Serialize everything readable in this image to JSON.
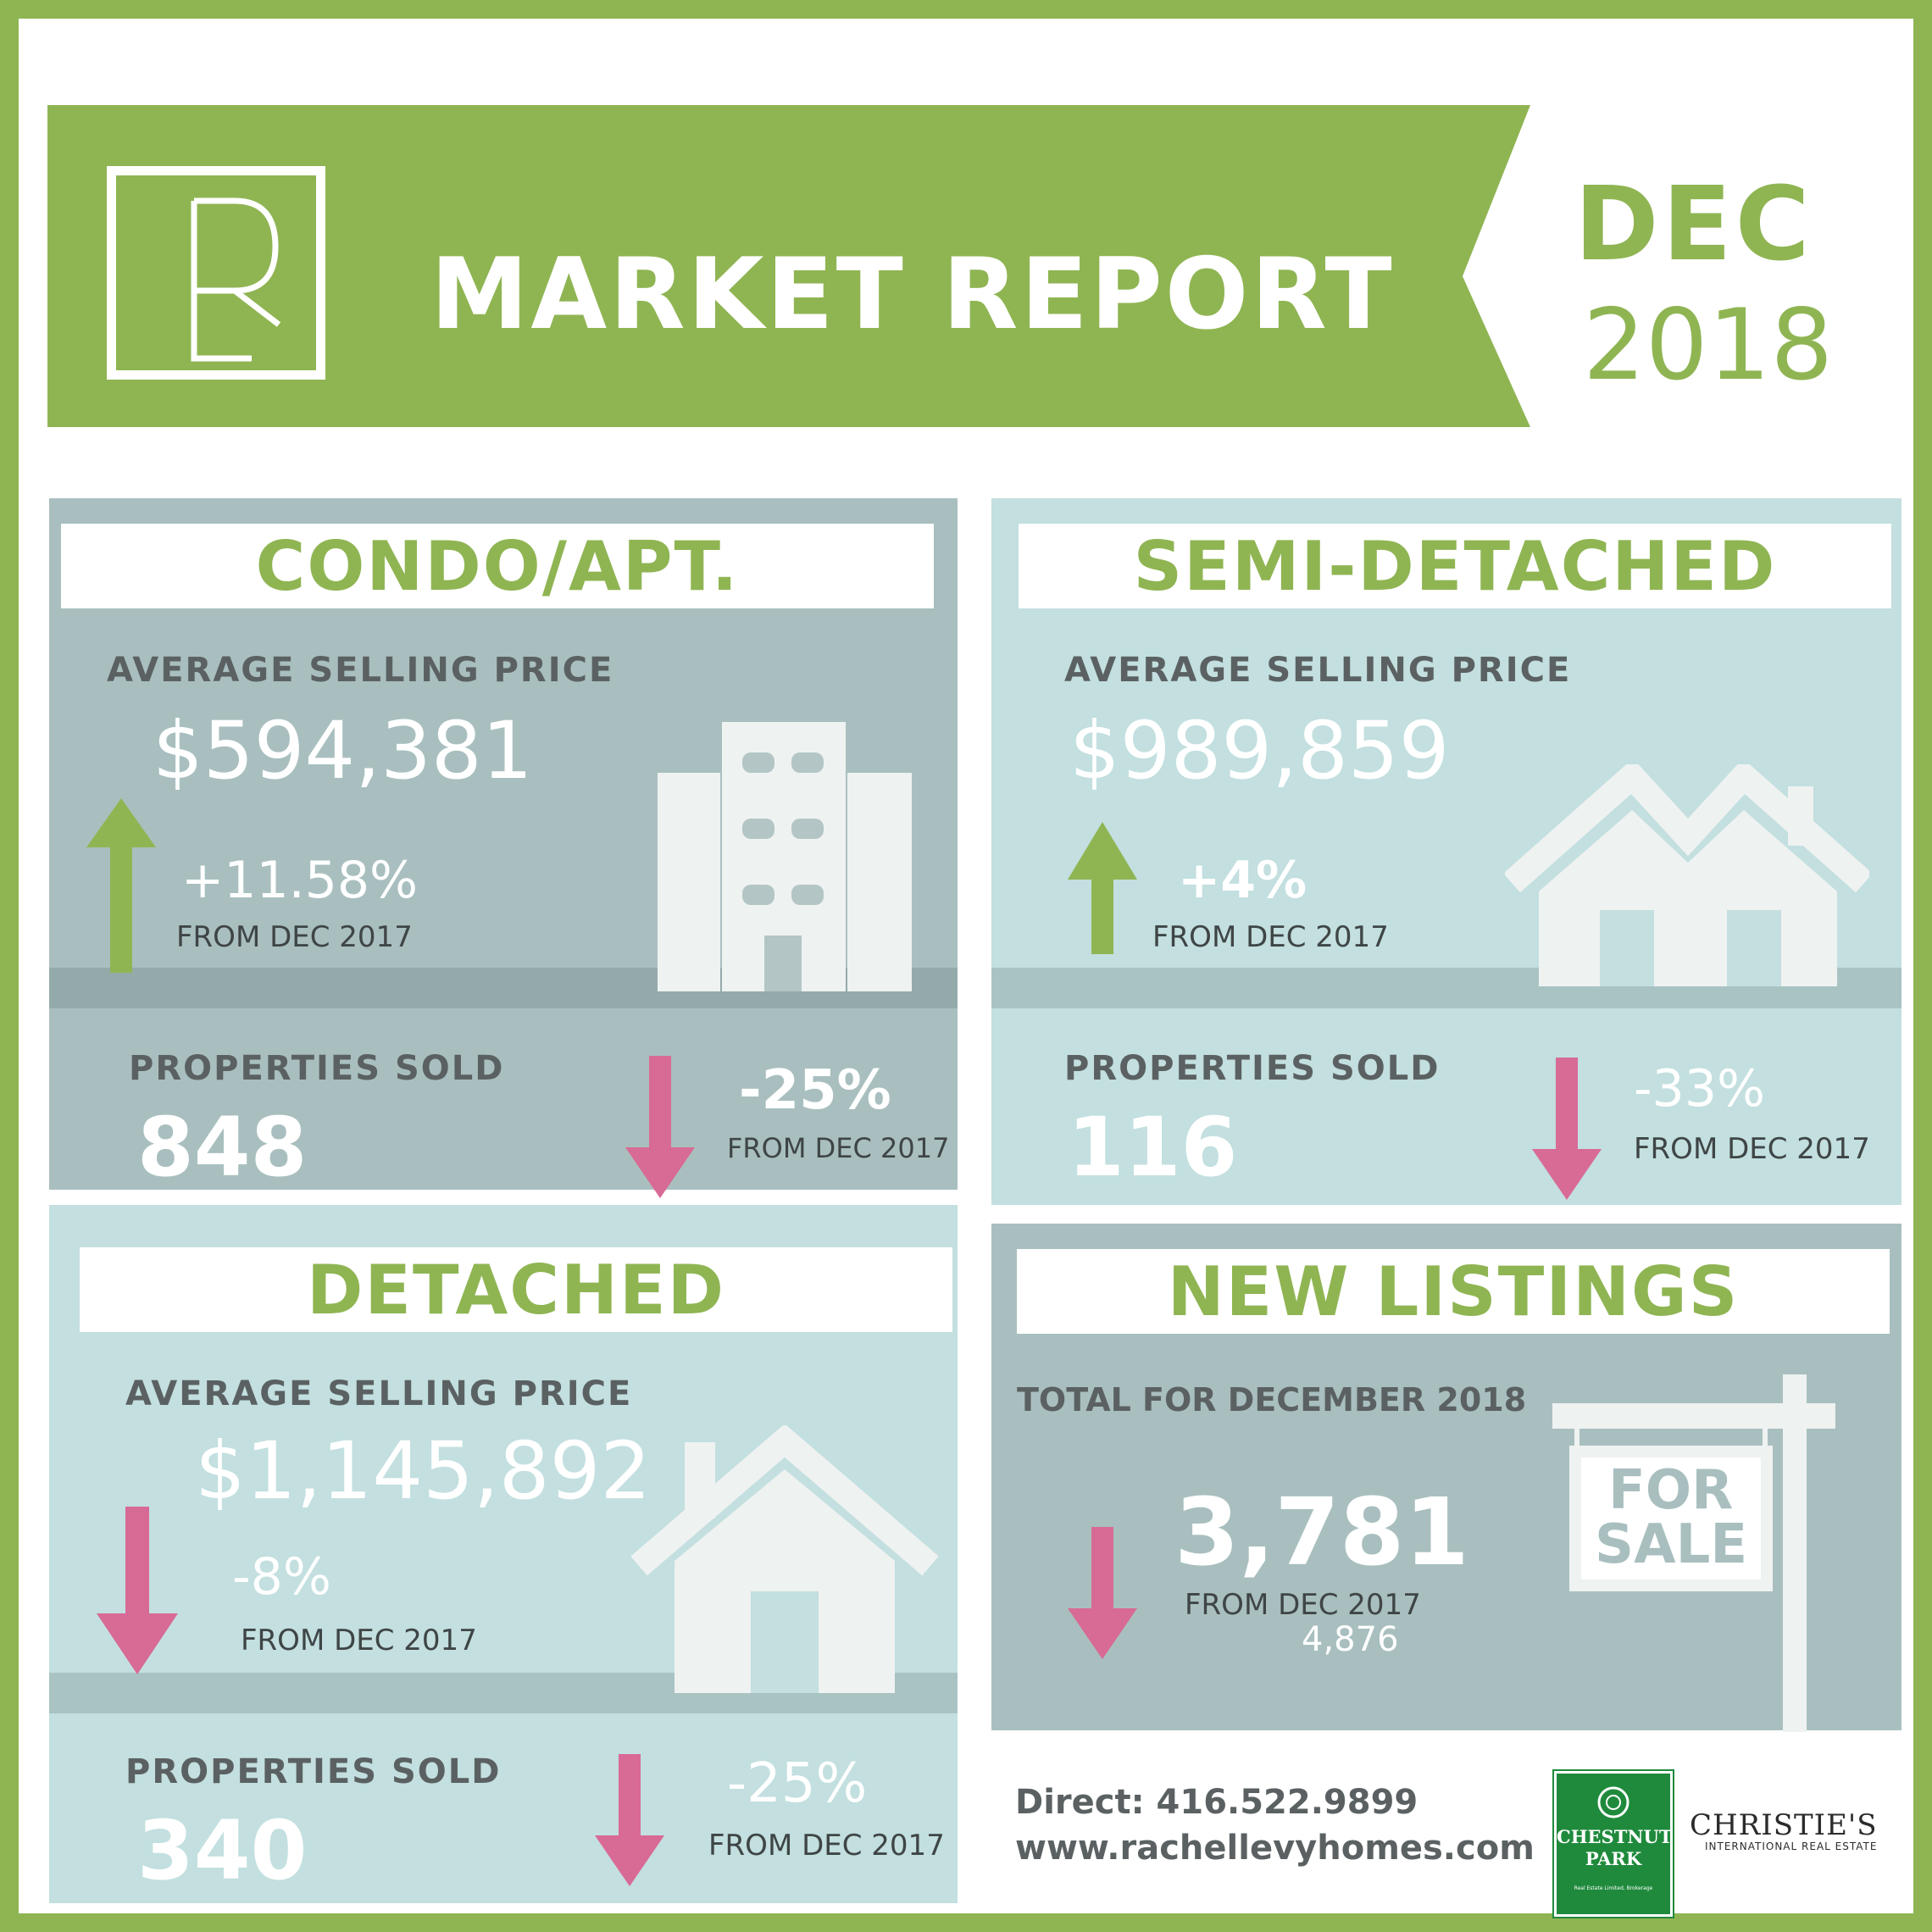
{
  "header": {
    "logo_letters": "RL",
    "title": "MARKET REPORT",
    "month": "DEC",
    "year": "2018"
  },
  "colors": {
    "brand_green": "#8fb553",
    "panel_gray": "#a9bfbf",
    "panel_teal": "#c3dfdf",
    "arrow_up": "#8fb553",
    "arrow_down": "#d86a96"
  },
  "condo": {
    "title": "CONDO/APT.",
    "avg_label": "AVERAGE SELLING PRICE",
    "avg_price": "$594,381",
    "avg_change": "+11.58%",
    "avg_from": "FROM DEC 2017",
    "sold_label": "PROPERTIES SOLD",
    "sold_value": "848",
    "sold_change": "-25%",
    "sold_from": "FROM DEC 2017",
    "icon": "apartment-building-icon"
  },
  "semi": {
    "title": "SEMI-DETACHED",
    "avg_label": "AVERAGE SELLING PRICE",
    "avg_price": "$989,859",
    "avg_change": "+4%",
    "avg_from": "FROM DEC 2017",
    "sold_label": "PROPERTIES SOLD",
    "sold_value": "116",
    "sold_change": "-33%",
    "sold_from": "FROM DEC 2017",
    "icon": "semi-detached-houses-icon"
  },
  "detached": {
    "title": "DETACHED",
    "avg_label": "AVERAGE SELLING PRICE",
    "avg_price": "$1,145,892",
    "avg_change": "-8%",
    "avg_from": "FROM DEC 2017",
    "sold_label": "PROPERTIES SOLD",
    "sold_value": "340",
    "sold_change": "-25%",
    "sold_from": "FROM DEC 2017",
    "icon": "house-icon"
  },
  "listings": {
    "title": "NEW LISTINGS",
    "total_label": "TOTAL FOR DECEMBER 2018",
    "total_value": "3,781",
    "from": "FROM DEC 2017",
    "prev_value": "4,876",
    "sign_line1": "FOR",
    "sign_line2": "SALE",
    "icon": "for-sale-sign-icon"
  },
  "footer": {
    "direct": "Direct: 416.522.9899",
    "website": "www.rachellevyhomes.com",
    "brokerage_line1": "CHESTNUT",
    "brokerage_line2": "PARK",
    "brokerage_sub": "Real Estate Limited, Brokerage",
    "affiliate_name": "CHRISTIE'S",
    "affiliate_sub": "INTERNATIONAL REAL ESTATE"
  }
}
